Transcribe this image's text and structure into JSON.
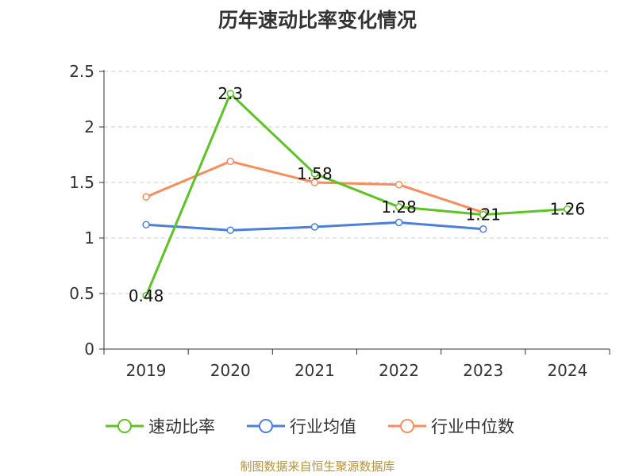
{
  "chart_data": {
    "type": "line",
    "title": "历年速动比率变化情况",
    "categories": [
      "2019",
      "2020",
      "2021",
      "2022",
      "2023",
      "2024"
    ],
    "ylim": [
      0,
      2.5
    ],
    "yticks": [
      "0",
      "0.5",
      "1",
      "1.5",
      "2",
      "2.5"
    ],
    "grid": true,
    "legend_position": "bottom",
    "series": [
      {
        "name": "速动比率",
        "color": "#5cc422",
        "values": [
          0.48,
          2.3,
          1.58,
          1.28,
          1.21,
          1.26
        ],
        "labels": [
          "0.48",
          "2.3",
          "1.58",
          "1.28",
          "1.21",
          "1.26"
        ]
      },
      {
        "name": "行业均值",
        "color": "#4a7fdc",
        "values": [
          1.12,
          1.07,
          1.1,
          1.14,
          1.08,
          null
        ]
      },
      {
        "name": "行业中位数",
        "color": "#f78d5c",
        "values": [
          1.37,
          1.69,
          1.5,
          1.48,
          1.23,
          null
        ]
      }
    ]
  },
  "source_note": "制图数据来自恒生聚源数据库"
}
